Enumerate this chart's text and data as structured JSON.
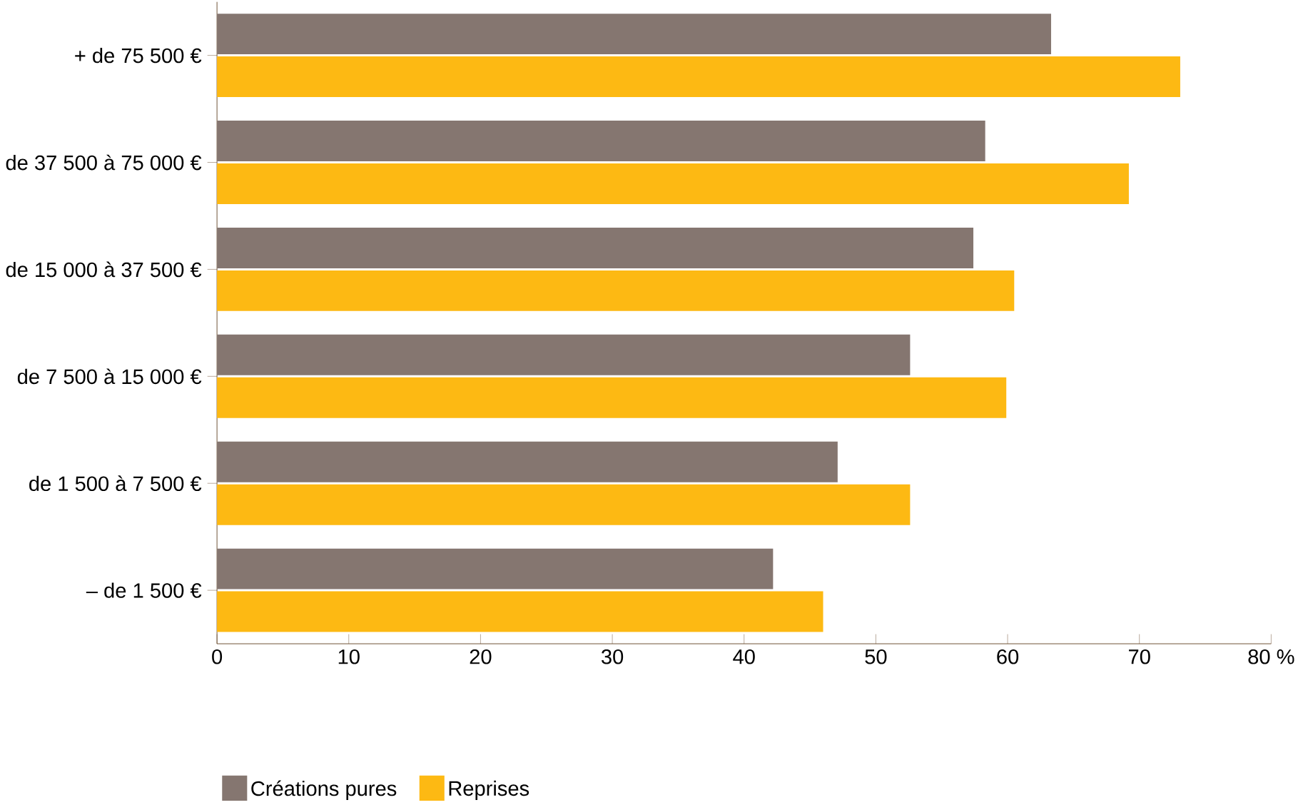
{
  "chart_data": {
    "type": "bar",
    "orientation": "horizontal",
    "categories": [
      "+ de 75 500 €",
      "de 37 500 à 75 000 €",
      "de 15 000 à 37 500 €",
      "de 7 500 à 15 000 €",
      "de 1 500 à 7 500 €",
      "– de 1 500 €"
    ],
    "series": [
      {
        "name": "Créations pures",
        "color": "#857670",
        "values": [
          63.3,
          58.3,
          57.4,
          52.6,
          47.1,
          42.2
        ]
      },
      {
        "name": "Reprises",
        "color": "#fdb913",
        "values": [
          73.1,
          69.2,
          60.5,
          59.9,
          52.6,
          46.0
        ]
      }
    ],
    "xlim": [
      0,
      80
    ],
    "xticks": [
      0,
      10,
      20,
      30,
      40,
      50,
      60,
      70,
      {
        "value": 80,
        "label": "80 %"
      }
    ],
    "grid": false,
    "legend": "bottom left"
  }
}
